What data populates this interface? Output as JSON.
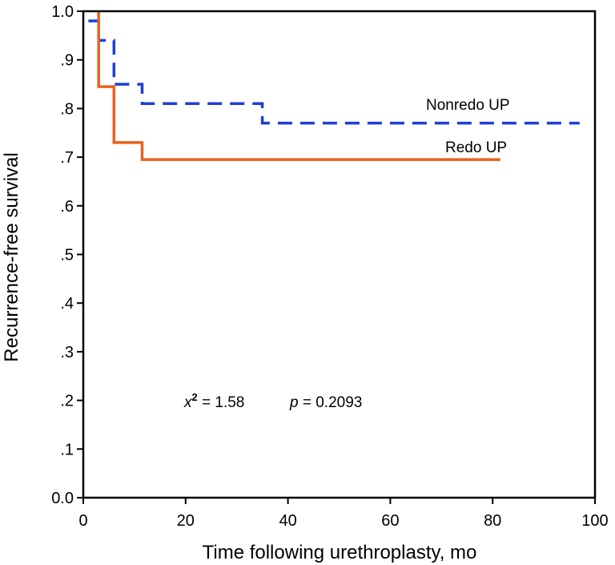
{
  "chart_data": {
    "type": "line",
    "subtype": "kaplan-meier step curve",
    "title": "",
    "xlabel": "Time following urethroplasty, mo",
    "ylabel": "Recurrence-free survival",
    "xlim": [
      0,
      100
    ],
    "ylim": [
      0.0,
      1.0
    ],
    "x_ticks": [
      0,
      20,
      40,
      60,
      80,
      100
    ],
    "x_tick_labels": [
      "0",
      "20",
      "40",
      "60",
      "80",
      "100"
    ],
    "y_ticks": [
      0.0,
      0.1,
      0.2,
      0.3,
      0.4,
      0.5,
      0.6,
      0.7,
      0.8,
      0.9,
      1.0
    ],
    "y_tick_labels": [
      "0.0",
      ".1",
      ".2",
      ".3",
      ".4",
      ".5",
      ".6",
      ".7",
      ".8",
      ".9",
      "1.0"
    ],
    "grid": false,
    "series": [
      {
        "name": "Nonredo UP",
        "label": "Nonredo UP",
        "color": "#1f3fd6",
        "style": "dashed",
        "x": [
          1,
          3,
          3,
          6,
          6,
          11.5,
          11.5,
          35,
          35,
          97
        ],
        "y": [
          0.98,
          0.98,
          0.94,
          0.94,
          0.85,
          0.85,
          0.81,
          0.81,
          0.77,
          0.77
        ]
      },
      {
        "name": "Redo UP",
        "label": "Redo UP",
        "color": "#e8621e",
        "style": "solid",
        "x": [
          3,
          3,
          6,
          6,
          11.5,
          11.5,
          81.5
        ],
        "y": [
          1.0,
          0.845,
          0.845,
          0.73,
          0.73,
          0.695,
          0.695
        ]
      }
    ],
    "annotations": {
      "chi_symbol": "x",
      "chi_sup": "2",
      "chi_value": " = 1.58",
      "p_symbol": "p",
      "p_value": " = 0.2093"
    }
  }
}
